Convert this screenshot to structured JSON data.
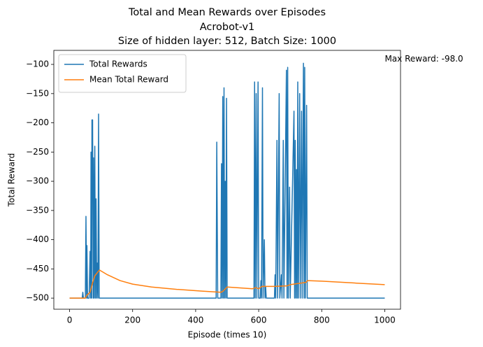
{
  "chart_data": {
    "type": "line",
    "title": "Total and Mean Rewards over Episodes",
    "subtitle": "Acrobot-v1",
    "subtitle2": "Size of hidden layer: 512, Batch Size: 1000",
    "xlabel": "Episode (times 10)",
    "ylabel": "Total Reward",
    "annotation": {
      "text": "Max Reward: -98.0",
      "x": 1000,
      "y": -98
    },
    "xlim": [
      -50,
      1050
    ],
    "xticks": [
      0,
      200,
      400,
      600,
      800,
      1000
    ],
    "ylim": [
      -519,
      -76
    ],
    "yticks": [
      {
        "value": -500,
        "label": "−500"
      },
      {
        "value": -450,
        "label": "−450"
      },
      {
        "value": -400,
        "label": "−400"
      },
      {
        "value": -350,
        "label": "−350"
      },
      {
        "value": -300,
        "label": "−300"
      },
      {
        "value": -250,
        "label": "−250"
      },
      {
        "value": -200,
        "label": "−200"
      },
      {
        "value": -150,
        "label": "−150"
      },
      {
        "value": -100,
        "label": "−100"
      }
    ],
    "legend": "upper left",
    "series": [
      {
        "name": "Total Rewards",
        "color": "#1f77b4",
        "x": [
          0,
          40,
          42,
          44,
          50,
          52,
          54,
          55,
          57,
          62,
          65,
          67,
          68,
          70,
          71,
          73,
          75,
          76,
          78,
          80,
          82,
          84,
          86,
          88,
          90,
          92,
          94,
          465,
          467,
          470,
          480,
          482,
          484,
          486,
          488,
          490,
          492,
          494,
          496,
          498,
          500,
          585,
          587,
          589,
          592,
          594,
          598,
          600,
          605,
          607,
          609,
          612,
          614,
          618,
          620,
          622,
          624,
          650,
          652,
          654,
          658,
          660,
          665,
          667,
          672,
          674,
          678,
          680,
          688,
          690,
          692,
          694,
          698,
          700,
          712,
          714,
          716,
          718,
          720,
          722,
          724,
          726,
          730,
          732,
          736,
          738,
          742,
          744,
          746,
          748,
          752,
          754,
          1000
        ],
        "values": [
          -500,
          -500,
          -490,
          -500,
          -500,
          -360,
          -500,
          -410,
          -500,
          -500,
          -420,
          -500,
          -250,
          -500,
          -195,
          -195,
          -500,
          -260,
          -500,
          -240,
          -500,
          -330,
          -500,
          -440,
          -500,
          -185,
          -500,
          -500,
          -233,
          -500,
          -500,
          -270,
          -500,
          -155,
          -500,
          -140,
          -500,
          -300,
          -500,
          -158,
          -500,
          -500,
          -130,
          -500,
          -150,
          -500,
          -130,
          -500,
          -500,
          -470,
          -500,
          -140,
          -500,
          -400,
          -500,
          -480,
          -500,
          -500,
          -460,
          -500,
          -230,
          -500,
          -150,
          -500,
          -460,
          -500,
          -230,
          -500,
          -110,
          -500,
          -105,
          -500,
          -310,
          -500,
          -180,
          -500,
          -230,
          -500,
          -280,
          -500,
          -130,
          -500,
          -150,
          -500,
          -180,
          -500,
          -98,
          -500,
          -105,
          -500,
          -170,
          -500,
          -500
        ]
      },
      {
        "name": "Mean Total Reward",
        "color": "#ff7f0e",
        "x": [
          0,
          50,
          55,
          65,
          75,
          80,
          90,
          95,
          120,
          160,
          200,
          260,
          340,
          420,
          480,
          487,
          500,
          580,
          590,
          600,
          610,
          650,
          690,
          700,
          750,
          755,
          800,
          900,
          1000
        ],
        "values": [
          -500,
          -500,
          -495,
          -490,
          -470,
          -462,
          -455,
          -452,
          -460,
          -470,
          -476,
          -481,
          -485,
          -488,
          -490,
          -488,
          -481,
          -484,
          -482,
          -484,
          -480,
          -480,
          -479,
          -477,
          -473,
          -470,
          -471,
          -474,
          -477
        ]
      }
    ]
  }
}
